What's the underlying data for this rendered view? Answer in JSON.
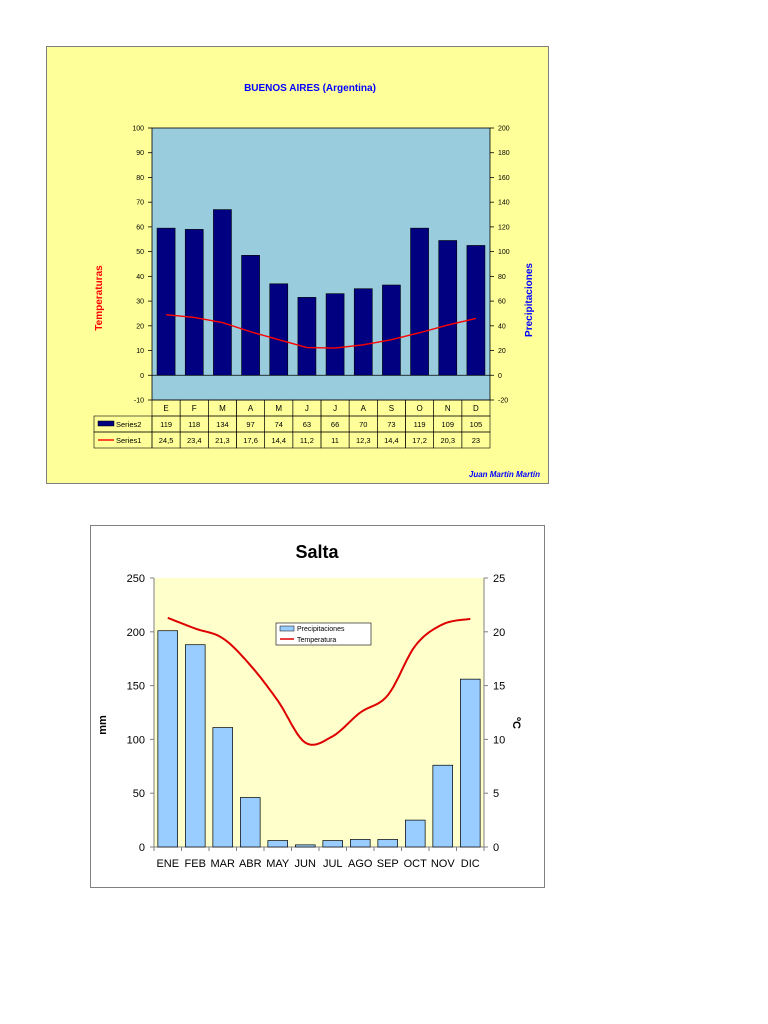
{
  "chart_data": [
    {
      "type": "bar",
      "title": "BUENOS AIRES (Argentina)",
      "author": "Juan Martín Martín",
      "ylabel_left": "Temperaturas",
      "ylabel_right": "Precipitaciones",
      "categories": [
        "E",
        "F",
        "M",
        "A",
        "M",
        "J",
        "J",
        "A",
        "S",
        "O",
        "N",
        "D"
      ],
      "y_left": {
        "min": -10,
        "max": 100,
        "ticks": [
          "-10",
          "0",
          "10",
          "20",
          "30",
          "40",
          "50",
          "60",
          "70",
          "80",
          "90",
          "100"
        ]
      },
      "y_right": {
        "min": -20,
        "max": 200,
        "ticks": [
          "-20",
          "0",
          "20",
          "40",
          "60",
          "80",
          "100",
          "120",
          "140",
          "160",
          "180",
          "200"
        ]
      },
      "series": [
        {
          "name": "Series2",
          "type": "bar",
          "axis": "right",
          "color": "#000080",
          "values": [
            119,
            118,
            134,
            97,
            74,
            63,
            66,
            70,
            73,
            119,
            109,
            105
          ],
          "labels": [
            "119",
            "118",
            "134",
            "97",
            "74",
            "63",
            "66",
            "70",
            "73",
            "119",
            "109",
            "105"
          ]
        },
        {
          "name": "Series1",
          "type": "line",
          "axis": "left",
          "color": "#ff0000",
          "values": [
            24.5,
            23.4,
            21.3,
            17.6,
            14.4,
            11.2,
            11,
            12.3,
            14.4,
            17.2,
            20.3,
            23
          ],
          "labels": [
            "24,5",
            "23,4",
            "21,3",
            "17,6",
            "14,4",
            "11,2",
            "11",
            "12,3",
            "14,4",
            "17,2",
            "20,3",
            "23"
          ]
        }
      ],
      "plot_bg": "#99ccdd",
      "chart_bg": "#ffff99",
      "title_color": "#0000ff",
      "left_label_color": "#ff0000",
      "right_label_color": "#0000ff",
      "data_table": true
    },
    {
      "type": "bar",
      "title": "Salta",
      "ylabel_left": "mm",
      "ylabel_right": "ºC",
      "categories": [
        "ENE",
        "FEB",
        "MAR",
        "ABR",
        "MAY",
        "JUN",
        "JUL",
        "AGO",
        "SEP",
        "OCT",
        "NOV",
        "DIC"
      ],
      "y_left": {
        "min": 0,
        "max": 250,
        "ticks": [
          "0",
          "50",
          "100",
          "150",
          "200",
          "250"
        ]
      },
      "y_right": {
        "min": 0,
        "max": 25,
        "ticks": [
          "0",
          "5",
          "10",
          "15",
          "20",
          "25"
        ]
      },
      "series": [
        {
          "name": "Precipitaciones",
          "type": "bar",
          "axis": "left",
          "color": "#99ccff",
          "values": [
            201,
            188,
            111,
            46,
            6,
            2,
            6,
            7,
            7,
            25,
            76,
            156
          ]
        },
        {
          "name": "Temperatura",
          "type": "line",
          "axis": "right",
          "color": "#ff0000",
          "values": [
            21.3,
            20.3,
            19.4,
            16.9,
            13.6,
            9.7,
            10.3,
            12.5,
            14.1,
            18.7,
            20.7,
            21.2
          ]
        }
      ],
      "legend": "top-center",
      "plot_bg": "#ffffcc",
      "chart_bg": "#ffffff"
    }
  ]
}
